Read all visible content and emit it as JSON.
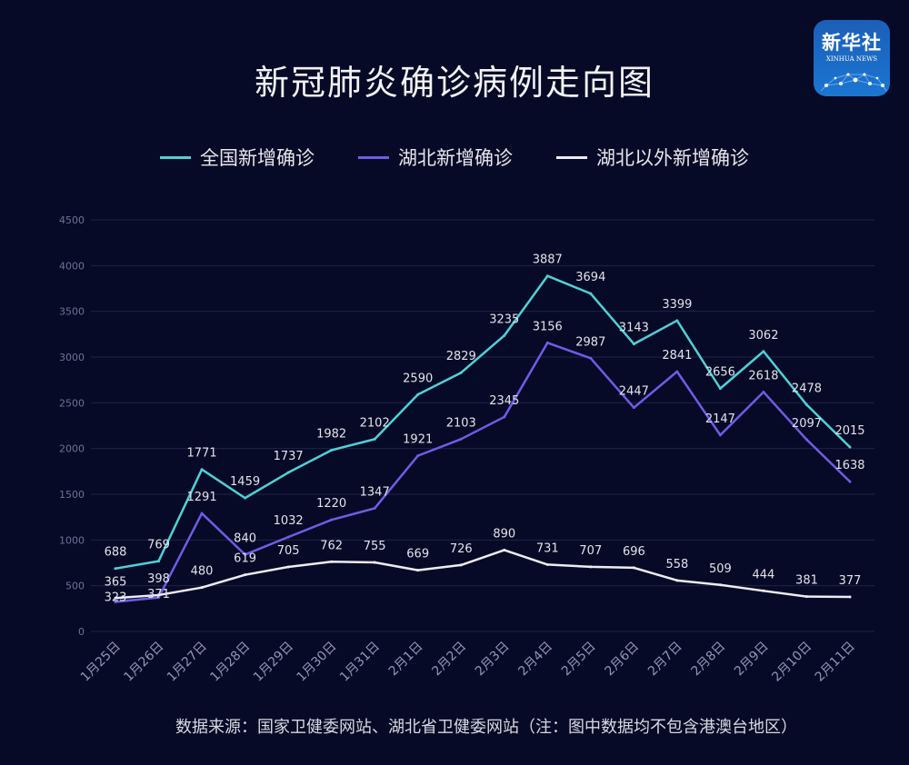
{
  "logo": {
    "cn": "新华社",
    "en": "XINHUA NEWS"
  },
  "chart_data": {
    "type": "line",
    "title": "新冠肺炎确诊病例走向图",
    "xlabel": "",
    "ylabel": "",
    "ylim": [
      0,
      4500
    ],
    "yticks": [
      0,
      500,
      1000,
      1500,
      2000,
      2500,
      3000,
      3500,
      4000,
      4500
    ],
    "grid": true,
    "legend_position": "top-center",
    "categories": [
      "1月25日",
      "1月26日",
      "1月27日",
      "1月28日",
      "1月29日",
      "1月30日",
      "1月31日",
      "2月1日",
      "2月2日",
      "2月3日",
      "2月4日",
      "2月5日",
      "2月6日",
      "2月7日",
      "2月8日",
      "2月9日",
      "2月10日",
      "2月11日"
    ],
    "series": [
      {
        "name": "全国新增确诊",
        "color": "#4fd0d6",
        "values": [
          688,
          769,
          1771,
          1459,
          1737,
          1982,
          2102,
          2590,
          2829,
          3235,
          3887,
          3694,
          3143,
          3399,
          2656,
          3062,
          2478,
          2015
        ]
      },
      {
        "name": "湖北新增确诊",
        "color": "#6f5ce6",
        "values": [
          323,
          371,
          1291,
          840,
          1032,
          1220,
          1347,
          1921,
          2103,
          2345,
          3156,
          2987,
          2447,
          2841,
          2147,
          2618,
          2097,
          1638
        ]
      },
      {
        "name": "湖北以外新增确诊",
        "color": "#ececf4",
        "values": [
          365,
          398,
          480,
          619,
          705,
          762,
          755,
          669,
          726,
          890,
          731,
          707,
          696,
          558,
          509,
          444,
          381,
          377
        ]
      }
    ],
    "source": "数据来源：国家卫健委网站、湖北省卫健委网站（注：图中数据均不包含港澳台地区）"
  }
}
